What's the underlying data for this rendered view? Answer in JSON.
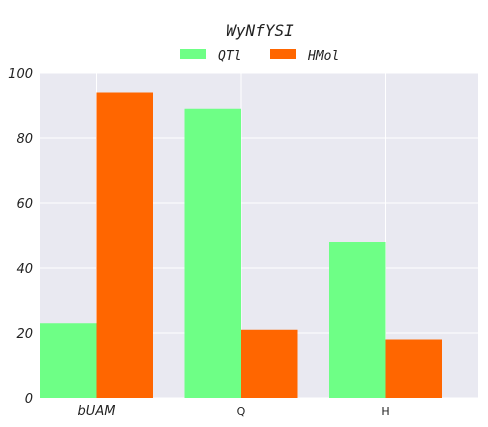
{
  "chart_data": {
    "type": "bar",
    "title": "WyNfYSI",
    "categories": [
      "bUAM",
      "Q",
      "H"
    ],
    "category_italic": [
      true,
      false,
      false
    ],
    "series": [
      {
        "name": "QTl",
        "values": [
          23,
          89,
          48
        ],
        "color": "#6eff86"
      },
      {
        "name": "HMol",
        "values": [
          94,
          21,
          18
        ],
        "color": "#ff6600"
      }
    ],
    "yticks": [
      "0",
      "20",
      "40",
      "60",
      "80",
      "100"
    ],
    "ylim": [
      0,
      100
    ],
    "grid": true,
    "legend_position": "top-center",
    "plot_background": "#e9e9f1"
  }
}
